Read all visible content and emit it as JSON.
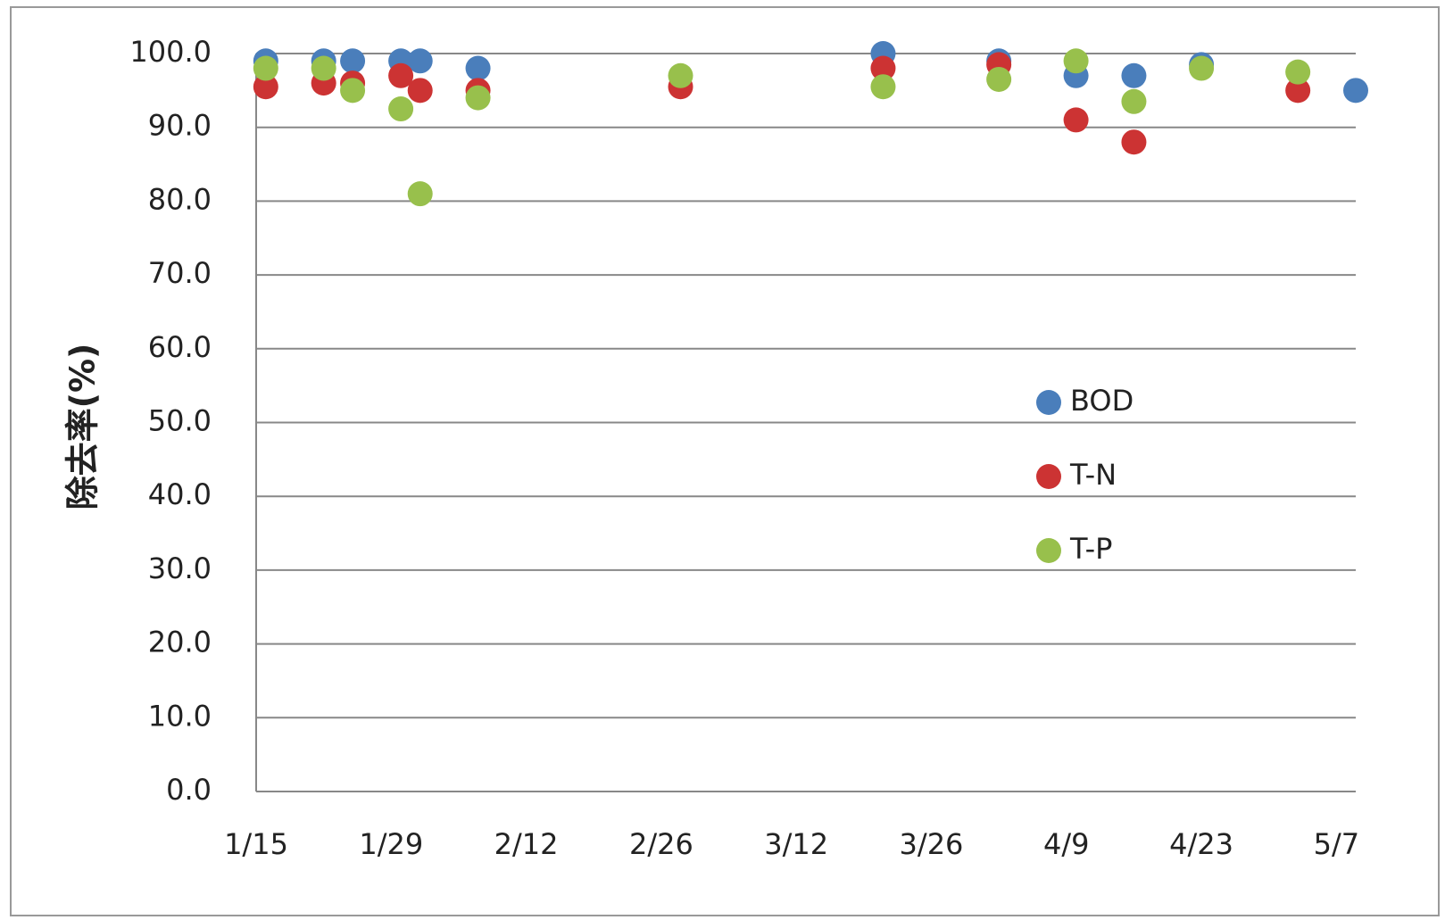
{
  "chart_data": {
    "type": "scatter",
    "y_label": "除去率(%)",
    "x": [
      "1/16",
      "1/22",
      "1/25",
      "1/30",
      "2/1",
      "2/7",
      "2/28",
      "3/21",
      "4/2",
      "4/10",
      "4/16",
      "4/23",
      "5/3",
      "5/9"
    ],
    "series": [
      {
        "name": "BOD",
        "color": "#4a7ebb",
        "values": [
          99,
          99,
          99,
          99,
          99,
          98,
          null,
          100,
          99,
          97,
          97,
          98.5,
          null,
          95
        ]
      },
      {
        "name": "T-N",
        "color": "#cc3333",
        "values": [
          95.5,
          96,
          96,
          97,
          95,
          95,
          95.5,
          98,
          98.5,
          91,
          88,
          null,
          95,
          null
        ]
      },
      {
        "name": "T-P",
        "color": "#98c04c",
        "values": [
          98,
          98,
          95,
          92.5,
          81,
          94,
          97,
          95.5,
          96.5,
          99,
          93.5,
          98,
          97.5,
          null
        ]
      }
    ],
    "xlim": [
      "1/15",
      "5/9"
    ],
    "xticks": [
      "1/15",
      "1/29",
      "2/12",
      "2/26",
      "3/12",
      "3/26",
      "4/9",
      "4/23",
      "5/7"
    ],
    "ylim": [
      0,
      100
    ],
    "yticks": [
      {
        "value": 0,
        "label": "0.0"
      },
      {
        "value": 10,
        "label": "10.0"
      },
      {
        "value": 20,
        "label": "20.0"
      },
      {
        "value": 30,
        "label": "30.0"
      },
      {
        "value": 40,
        "label": "40.0"
      },
      {
        "value": 50,
        "label": "50.0"
      },
      {
        "value": 60,
        "label": "60.0"
      },
      {
        "value": 70,
        "label": "70.0"
      },
      {
        "value": 80,
        "label": "80.0"
      },
      {
        "value": 90,
        "label": "90.0"
      },
      {
        "value": 100,
        "label": "100.0"
      }
    ],
    "grid": true,
    "legend": "right"
  }
}
